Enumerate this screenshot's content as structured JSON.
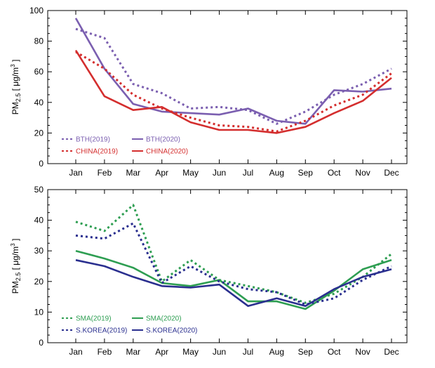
{
  "chart_data": [
    {
      "type": "line",
      "title": "",
      "xlabel": "",
      "ylabel_main": "PM",
      "ylabel_sub": "2.5",
      "ylabel_unit": " [ μg/m",
      "ylabel_sup": "3",
      "ylabel_end": " ]",
      "ylim": [
        0,
        100
      ],
      "yticks": [
        "0",
        "20",
        "40",
        "60",
        "80",
        "100"
      ],
      "categories": [
        "Jan",
        "Feb",
        "Mar",
        "Apr",
        "May",
        "Jun",
        "Jul",
        "Aug",
        "Sep",
        "Oct",
        "Nov",
        "Dec"
      ],
      "legend_position": "bottom-left",
      "series": [
        {
          "name": "BTH(2019)",
          "color": "#7b5fb0",
          "style": "dotted",
          "values": [
            88,
            82,
            52,
            46,
            36,
            37,
            35,
            26,
            34,
            45,
            52,
            62
          ]
        },
        {
          "name": "BTH(2020)",
          "color": "#7b5fb0",
          "style": "solid",
          "values": [
            95,
            62,
            39,
            34,
            33,
            32,
            36,
            28,
            26,
            48,
            47,
            49
          ]
        },
        {
          "name": "CHINA(2019)",
          "color": "#d42e2e",
          "style": "dotted",
          "values": [
            73,
            62,
            45,
            36,
            30,
            25,
            24,
            21,
            28,
            38,
            45,
            59
          ]
        },
        {
          "name": "CHINA(2020)",
          "color": "#d42e2e",
          "style": "solid",
          "values": [
            74,
            44,
            35,
            37,
            27,
            22,
            22,
            20,
            24,
            33,
            41,
            56
          ]
        }
      ]
    },
    {
      "type": "line",
      "title": "",
      "xlabel": "",
      "ylabel_main": "PM",
      "ylabel_sub": "2.5",
      "ylabel_unit": " [ μg/m",
      "ylabel_sup": "3",
      "ylabel_end": " ]",
      "ylim": [
        0,
        50
      ],
      "yticks": [
        "0",
        "10",
        "20",
        "30",
        "40",
        "50"
      ],
      "categories": [
        "Jan",
        "Feb",
        "Mar",
        "Apr",
        "May",
        "Jun",
        "Jul",
        "Aug",
        "Sep",
        "Oct",
        "Nov",
        "Dec"
      ],
      "legend_position": "bottom-left",
      "series": [
        {
          "name": "SMA(2019)",
          "color": "#2e9e52",
          "style": "dotted",
          "values": [
            39.5,
            36.5,
            45,
            20,
            27,
            20.5,
            18.5,
            16.5,
            13,
            16,
            21.5,
            29
          ]
        },
        {
          "name": "SMA(2020)",
          "color": "#2e9e52",
          "style": "solid",
          "values": [
            30,
            27.5,
            24.5,
            19.5,
            18.5,
            20.5,
            13.5,
            13.5,
            11,
            17,
            24,
            27
          ]
        },
        {
          "name": "S.KOREA(2019)",
          "color": "#2a2f8f",
          "style": "dotted",
          "values": [
            35,
            34,
            39,
            19.5,
            25,
            20,
            17.5,
            16.5,
            12.5,
            14.5,
            20.5,
            25
          ]
        },
        {
          "name": "S.KOREA(2020)",
          "color": "#2a2f8f",
          "style": "solid",
          "values": [
            27,
            25,
            21.5,
            18.5,
            18,
            19,
            12,
            14.5,
            12,
            17.5,
            21.5,
            24
          ]
        }
      ]
    }
  ]
}
